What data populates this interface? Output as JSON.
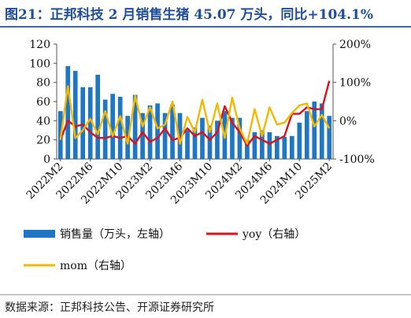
{
  "title": "图21：正邦科技 2 月销售生猪 45.07 万头，同比+104.1%",
  "source": "数据来源：正邦科技公告、开源证券研究所",
  "colors": {
    "bar": "#1f77c4",
    "yoy": "#e0101a",
    "mom": "#f5b800",
    "title": "#1f4e9c"
  },
  "chart_data": {
    "type": "bar",
    "categories": [
      "2022M2",
      "2022M3",
      "2022M4",
      "2022M5",
      "2022M6",
      "2022M7",
      "2022M8",
      "2022M9",
      "2022M10",
      "2022M11",
      "2022M12",
      "2023M1",
      "2023M2",
      "2023M3",
      "2023M4",
      "2023M5",
      "2023M6",
      "2023M7",
      "2023M8",
      "2023M9",
      "2023M10",
      "2023M11",
      "2023M12",
      "2024M1",
      "2024M2",
      "2024M3",
      "2024M4",
      "2024M5",
      "2024M6",
      "2024M7",
      "2024M8",
      "2024M9",
      "2024M10",
      "2024M11",
      "2024M12",
      "2025M1",
      "2025M2"
    ],
    "x_tick_labels": [
      "2022M2",
      "2022M6",
      "2022M10",
      "2023M2",
      "2023M6",
      "2023M10",
      "2024M2",
      "2024M6",
      "2024M10",
      "2025M2"
    ],
    "series": [
      {
        "name": "销售量（万头，左轴）",
        "axis": "left",
        "type": "bar",
        "values": [
          50,
          97,
          92,
          75,
          75,
          88,
          62,
          68,
          65,
          45,
          67,
          48,
          56,
          58,
          48,
          57,
          48,
          30,
          33,
          43,
          35,
          40,
          50,
          43,
          43,
          20,
          28,
          30,
          28,
          24,
          23,
          24,
          38,
          50,
          60,
          58,
          45
        ]
      },
      {
        "name": "yoy（右轴）",
        "axis": "right",
        "type": "line",
        "values": [
          -50,
          0,
          -15,
          -10,
          -30,
          -45,
          -45,
          -40,
          -45,
          -40,
          -60,
          -30,
          -55,
          -45,
          -20,
          -50,
          -45,
          -20,
          -40,
          -30,
          -50,
          -30,
          38,
          -5,
          -30,
          -65,
          -40,
          -50,
          -60,
          -50,
          -40,
          18,
          18,
          35,
          30,
          30,
          104
        ]
      },
      {
        "name": "mom（右轴）",
        "axis": "right",
        "type": "line",
        "values": [
          -50,
          90,
          -45,
          -25,
          5,
          -35,
          25,
          -40,
          12,
          -60,
          65,
          -15,
          35,
          -20,
          -10,
          50,
          -60,
          10,
          -30,
          55,
          -30,
          45,
          -45,
          60,
          -20,
          -60,
          30,
          -40,
          35,
          -10,
          -5,
          20,
          40,
          45,
          -15,
          15,
          -20
        ]
      }
    ],
    "y_left": {
      "min": 0,
      "max": 120,
      "step": 20,
      "ticks": [
        "0",
        "20",
        "40",
        "60",
        "80",
        "100",
        "120"
      ]
    },
    "y_right": {
      "min": -100,
      "max": 200,
      "step": 100,
      "ticks": [
        "-100%",
        "0%",
        "100%",
        "200%"
      ]
    },
    "legend": [
      {
        "label": "销售量（万头，左轴）",
        "kind": "bar"
      },
      {
        "label": "yoy（右轴）",
        "kind": "line",
        "color": "#e0101a"
      },
      {
        "label": "mom（右轴）",
        "kind": "line",
        "color": "#f5b800"
      }
    ],
    "legend_position": "bottom",
    "grid": false
  }
}
